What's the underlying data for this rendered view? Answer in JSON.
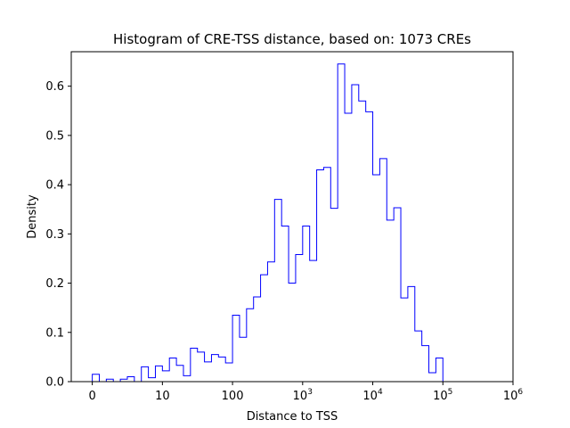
{
  "chart_data": {
    "type": "histogram",
    "title": "Histogram of CRE-TSS distance, based on: 1073 CREs",
    "xlabel": "Distance to TSS",
    "ylabel": "Density",
    "x_scale": "symlog",
    "xlim": [
      -0.3,
      6.0
    ],
    "ylim": [
      0,
      0.67
    ],
    "series_color": "#0000ff",
    "x_ticks": [
      {
        "value": 0,
        "label": "0"
      },
      {
        "value": 1,
        "label": "10"
      },
      {
        "value": 2,
        "label": "100"
      },
      {
        "value": 3,
        "label_base": "10",
        "label_exp": "3"
      },
      {
        "value": 4,
        "label_base": "10",
        "label_exp": "4"
      },
      {
        "value": 5,
        "label_base": "10",
        "label_exp": "5"
      },
      {
        "value": 6,
        "label_base": "10",
        "label_exp": "6"
      }
    ],
    "y_ticks": [
      {
        "value": 0.0,
        "label": "0.0"
      },
      {
        "value": 0.1,
        "label": "0.1"
      },
      {
        "value": 0.2,
        "label": "0.2"
      },
      {
        "value": 0.3,
        "label": "0.3"
      },
      {
        "value": 0.4,
        "label": "0.4"
      },
      {
        "value": 0.5,
        "label": "0.5"
      },
      {
        "value": 0.6,
        "label": "0.6"
      }
    ],
    "bin_edges": [
      0.0,
      0.1,
      0.2,
      0.3,
      0.4,
      0.5,
      0.6,
      0.7,
      0.8,
      0.9,
      1.0,
      1.1,
      1.2,
      1.3,
      1.4,
      1.5,
      1.6,
      1.7,
      1.8,
      1.9,
      2.0,
      2.1,
      2.2,
      2.3,
      2.4,
      2.5,
      2.6,
      2.7,
      2.8,
      2.9,
      3.0,
      3.1,
      3.2,
      3.3,
      3.4,
      3.5,
      3.6,
      3.7,
      3.8,
      3.9,
      4.0,
      4.1,
      4.2,
      4.3,
      4.4,
      4.5,
      4.6,
      4.7,
      4.8,
      4.9,
      5.0,
      5.1,
      5.2,
      5.3
    ],
    "densities": [
      0.015,
      0.0,
      0.005,
      0.0,
      0.005,
      0.01,
      0.0,
      0.03,
      0.008,
      0.032,
      0.022,
      0.048,
      0.033,
      0.012,
      0.068,
      0.06,
      0.04,
      0.055,
      0.05,
      0.038,
      0.135,
      0.09,
      0.148,
      0.172,
      0.217,
      0.243,
      0.37,
      0.316,
      0.2,
      0.258,
      0.316,
      0.246,
      0.43,
      0.435,
      0.352,
      0.645,
      0.545,
      0.603,
      0.57,
      0.548,
      0.42,
      0.453,
      0.328,
      0.353,
      0.17,
      0.193,
      0.103,
      0.073,
      0.018,
      0.048,
      0.0,
      0.0,
      0.0
    ]
  }
}
